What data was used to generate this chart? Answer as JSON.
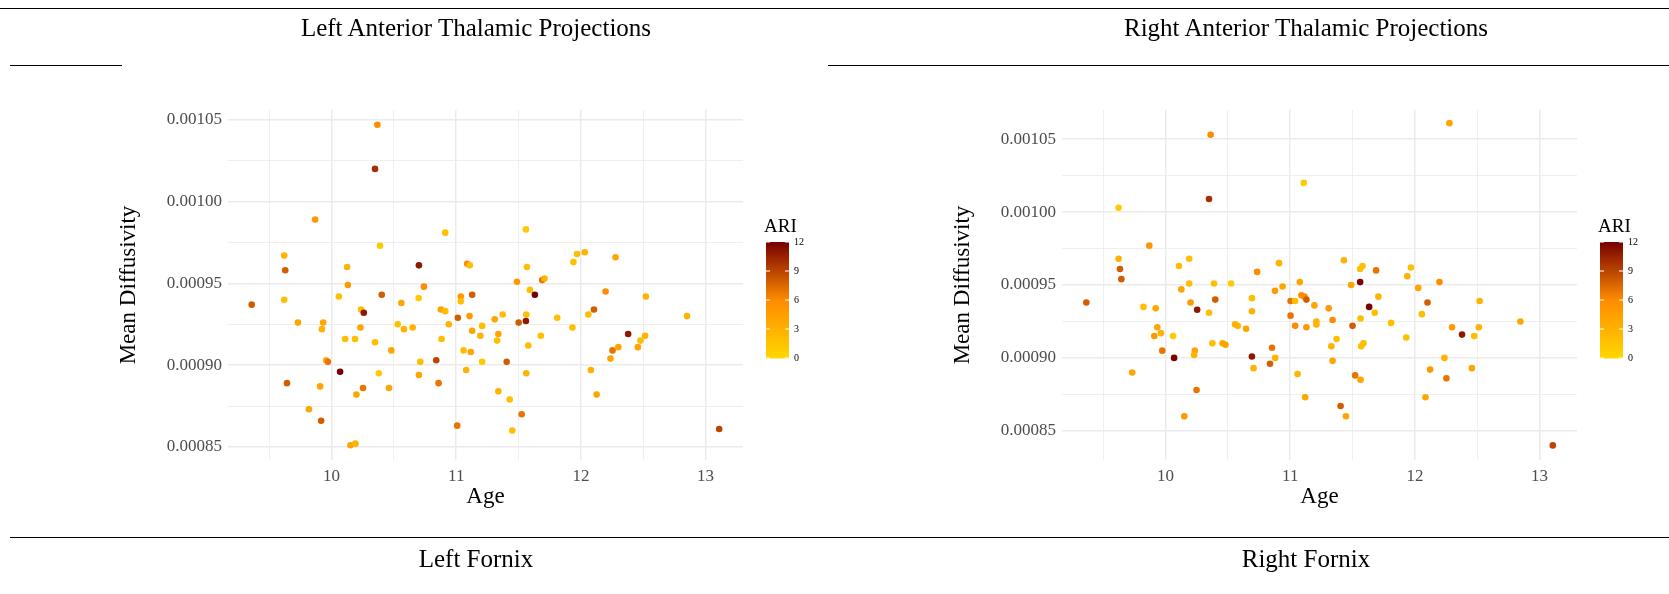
{
  "chart_data": [
    {
      "type": "scatter",
      "title": "Left Anterior Thalamic Projections",
      "xlabel": "Age",
      "ylabel": "Mean Diffusivity",
      "clabel": "ARI",
      "clim": [
        0,
        12
      ],
      "cticks": [
        0,
        3,
        6,
        9,
        12
      ],
      "grid": true,
      "legend": false,
      "marker": "circle",
      "xlim": [
        9.17,
        13.3
      ],
      "xticks": [
        {
          "value": 9.5,
          "label": null
        },
        10,
        {
          "value": 10.5,
          "label": null
        },
        11,
        {
          "value": 11.5,
          "label": null
        },
        12,
        {
          "value": 12.5,
          "label": null
        },
        13
      ],
      "ylim": [
        0.000842,
        0.001056
      ],
      "yticks": [
        0.00085,
        {
          "value": 0.000875,
          "label": null
        },
        {
          "value": 0.0009,
          "label": "0.00090"
        },
        {
          "value": 0.000925,
          "label": null
        },
        0.00095,
        {
          "value": 0.000975,
          "label": null
        },
        {
          "value": 0.001,
          "label": "0.00100"
        },
        {
          "value": 0.001025,
          "label": null
        },
        0.00105
      ],
      "annotations": [
        "Left Fornix"
      ],
      "x": [
        9.36,
        10.368,
        10.349,
        9.869,
        9.621,
        9.629,
        9.621,
        9.731,
        9.933,
        9.923,
        9.643,
        9.819,
        9.909,
        9.917,
        9.957,
        9.971,
        10.069,
        10.125,
        10.131,
        10.059,
        10.109,
        10.189,
        10.237,
        10.259,
        10.232,
        10.2,
        10.253,
        10.152,
        10.192,
        10.349,
        10.379,
        10.389,
        10.403,
        10.48,
        10.461,
        10.531,
        10.56,
        10.581,
        10.651,
        10.699,
        10.701,
        10.741,
        10.712,
        10.701,
        10.84,
        10.859,
        10.877,
        10.912,
        10.912,
        10.941,
        10.883,
        11.008,
        11.013,
        11.088,
        11.109,
        11.037,
        11.037,
        11.128,
        11.107,
        11.128,
        11.208,
        11.194,
        11.309,
        11.373,
        11.338,
        11.328,
        11.059,
        11.117,
        11.08,
        11.208,
        11.405,
        11.338,
        11.429,
        11.525,
        11.45,
        11.559,
        11.567,
        11.487,
        11.591,
        11.631,
        11.69,
        11.708,
        11.562,
        11.501,
        11.559,
        11.679,
        11.578,
        11.562,
        11.81,
        11.932,
        11.94,
        11.969,
        12.031,
        12.06,
        12.105,
        12.198,
        12.278,
        12.08,
        12.126,
        12.237,
        12.254,
        12.3,
        12.379,
        12.457,
        12.478,
        12.515,
        12.521,
        12.851,
        13.109
      ],
      "values": [
        0.000937,
        0.001047,
        0.00102,
        0.000989,
        0.000967,
        0.000958,
        0.00094,
        0.000926,
        0.000926,
        0.000922,
        0.000889,
        0.000873,
        0.000887,
        0.000866,
        0.000903,
        0.000902,
        0.000896,
        0.00096,
        0.000949,
        0.000942,
        0.000916,
        0.000916,
        0.000934,
        0.000932,
        0.000923,
        0.000882,
        0.000886,
        0.000851,
        0.000852,
        0.000914,
        0.000895,
        0.000973,
        0.000943,
        0.000909,
        0.000886,
        0.000925,
        0.000938,
        0.000922,
        0.000923,
        0.000941,
        0.000961,
        0.000948,
        0.000902,
        0.000894,
        0.000903,
        0.000889,
        0.000934,
        0.000933,
        0.000981,
        0.000925,
        0.000916,
        0.000863,
        0.000929,
        0.000962,
        0.000961,
        0.000942,
        0.000939,
        0.000943,
        0.00093,
        0.000921,
        0.000924,
        0.000918,
        0.000928,
        0.000931,
        0.000919,
        0.000915,
        0.000909,
        0.000908,
        0.000897,
        0.000902,
        0.000902,
        0.000884,
        0.000879,
        0.00087,
        0.00086,
        0.000983,
        0.00096,
        0.000951,
        0.000946,
        0.000943,
        0.000952,
        0.000953,
        0.000931,
        0.000926,
        0.000927,
        0.000918,
        0.000912,
        0.000895,
        0.000929,
        0.000923,
        0.000963,
        0.000968,
        0.000969,
        0.000931,
        0.000934,
        0.000945,
        0.000966,
        0.000897,
        0.000882,
        0.000904,
        0.000909,
        0.000911,
        0.000919,
        0.000911,
        0.000915,
        0.000918,
        0.000942,
        0.00093,
        0.000861
      ],
      "cvalues": [
        8,
        6,
        10,
        5,
        3,
        8,
        2,
        4,
        4,
        3,
        8,
        4,
        4,
        8,
        3,
        7,
        12,
        3,
        5,
        2,
        2,
        2,
        2,
        11,
        4,
        4,
        7,
        4,
        3,
        2,
        1,
        1,
        8,
        4,
        4,
        2,
        4,
        3,
        3,
        1,
        11,
        6,
        2,
        4,
        9,
        7,
        4,
        2,
        2,
        3,
        2,
        7,
        8,
        6,
        2,
        5,
        2,
        8,
        5,
        4,
        2,
        3,
        4,
        2,
        4,
        2,
        2,
        4,
        3,
        1,
        8,
        3,
        2,
        7,
        2,
        1,
        2,
        5,
        2,
        12,
        7,
        3,
        2,
        8,
        11,
        2,
        2,
        3,
        2,
        2,
        2,
        2,
        3,
        2,
        8,
        6,
        4,
        3,
        4,
        4,
        7,
        4,
        11,
        4,
        2,
        3,
        3,
        3,
        9
      ]
    },
    {
      "type": "scatter",
      "title": "Right Anterior Thalamic Projections",
      "xlabel": "Age",
      "ylabel": "Mean Diffusivity",
      "clabel": "ARI",
      "clim": [
        0,
        12
      ],
      "cticks": [
        0,
        3,
        6,
        9,
        12
      ],
      "grid": true,
      "legend": false,
      "marker": "circle",
      "xlim": [
        9.17,
        13.3
      ],
      "xticks": [
        {
          "value": 9.5,
          "label": null
        },
        10,
        {
          "value": 10.5,
          "label": null
        },
        11,
        {
          "value": 11.5,
          "label": null
        },
        12,
        {
          "value": 12.5,
          "label": null
        },
        13
      ],
      "ylim": [
        0.00083,
        0.00107
      ],
      "yticks": [
        0.00085,
        {
          "value": 0.000875,
          "label": null
        },
        {
          "value": 0.0009,
          "label": "0.00090"
        },
        {
          "value": 0.000925,
          "label": null
        },
        0.00095,
        {
          "value": 0.000975,
          "label": null
        },
        {
          "value": 0.001,
          "label": "0.00100"
        },
        {
          "value": 0.001025,
          "label": null
        },
        0.00105
      ],
      "annotations": [
        "Right Fornix"
      ],
      "x": [
        9.365,
        10.362,
        10.349,
        9.624,
        9.87,
        9.624,
        9.635,
        9.646,
        9.823,
        9.921,
        9.934,
        9.91,
        9.963,
        9.974,
        9.733,
        10.069,
        10.061,
        10.108,
        10.127,
        10.19,
        10.19,
        10.201,
        10.254,
        10.349,
        10.389,
        10.399,
        10.376,
        10.235,
        10.23,
        10.249,
        10.151,
        10.458,
        10.481,
        10.526,
        10.558,
        10.579,
        10.646,
        10.735,
        10.693,
        10.693,
        10.693,
        10.706,
        10.838,
        10.854,
        10.88,
        10.878,
        10.91,
        10.939,
        11.003,
        11.04,
        11.077,
        11.09,
        11.114,
        11.13,
        11.003,
        11.04,
        11.13,
        11.194,
        11.21,
        11.21,
        11.109,
        11.059,
        11.12,
        11.309,
        11.34,
        11.372,
        11.33,
        11.34,
        11.431,
        11.404,
        11.447,
        11.489,
        11.5,
        11.521,
        11.564,
        11.561,
        11.58,
        11.561,
        11.564,
        11.569,
        11.588,
        11.633,
        11.689,
        11.707,
        11.678,
        11.809,
        11.931,
        11.939,
        11.968,
        12.027,
        12.056,
        12.101,
        12.197,
        12.277,
        12.085,
        12.122,
        12.237,
        12.253,
        12.298,
        12.378,
        12.457,
        12.476,
        12.513,
        12.519,
        12.846,
        13.106
      ],
      "values": [
        0.000938,
        0.001053,
        0.001009,
        0.001003,
        0.000977,
        0.000968,
        0.000961,
        0.000954,
        0.000935,
        0.000934,
        0.000921,
        0.000915,
        0.000917,
        0.000905,
        0.00089,
        0.0009,
        0.000915,
        0.000963,
        0.000947,
        0.000968,
        0.000951,
        0.000938,
        0.000933,
        0.000931,
        0.000951,
        0.00094,
        0.00091,
        0.000905,
        0.000902,
        0.000878,
        0.00086,
        0.00091,
        0.000909,
        0.000951,
        0.000923,
        0.000922,
        0.00092,
        0.000959,
        0.000941,
        0.000932,
        0.000901,
        0.000893,
        0.000896,
        0.000907,
        0.0009,
        0.000946,
        0.000965,
        0.000949,
        0.000939,
        0.000939,
        0.000952,
        0.000943,
        0.000942,
        0.00094,
        0.000929,
        0.000922,
        0.000921,
        0.000936,
        0.000925,
        0.000923,
        0.00102,
        0.000889,
        0.000873,
        0.000934,
        0.000926,
        0.000913,
        0.000908,
        0.000898,
        0.000967,
        0.000867,
        0.00086,
        0.00095,
        0.000922,
        0.000888,
        0.000885,
        0.000961,
        0.000963,
        0.000952,
        0.000927,
        0.000908,
        0.00091,
        0.000935,
        0.00096,
        0.000942,
        0.000931,
        0.000924,
        0.000914,
        0.000956,
        0.000962,
        0.000948,
        0.00093,
        0.000938,
        0.000952,
        0.001061,
        0.000873,
        0.000892,
        0.0009,
        0.000886,
        0.000921,
        0.000916,
        0.000893,
        0.000915,
        0.000921,
        0.000939,
        0.000925,
        0.00084
      ],
      "cvalues": [
        8,
        6,
        10,
        1,
        5,
        3,
        8,
        8,
        2,
        4,
        4,
        5,
        3,
        7,
        4,
        12,
        1,
        2,
        4,
        2,
        2,
        5,
        11,
        2,
        2,
        8,
        2,
        4,
        3,
        7,
        5,
        4,
        4,
        1,
        3,
        3,
        4,
        6,
        2,
        3,
        11,
        3,
        8,
        7,
        3,
        5,
        3,
        4,
        7,
        2,
        4,
        6,
        6,
        8,
        7,
        6,
        5,
        4,
        3,
        3,
        1,
        3,
        4,
        5,
        6,
        2,
        3,
        4,
        3,
        8,
        4,
        4,
        8,
        7,
        4,
        2,
        2,
        12,
        2,
        2,
        2,
        12,
        7,
        3,
        2,
        2,
        2,
        3,
        2,
        4,
        2,
        8,
        6,
        4,
        4,
        5,
        3,
        7,
        5,
        11,
        4,
        2,
        3,
        3,
        4,
        9
      ]
    }
  ]
}
